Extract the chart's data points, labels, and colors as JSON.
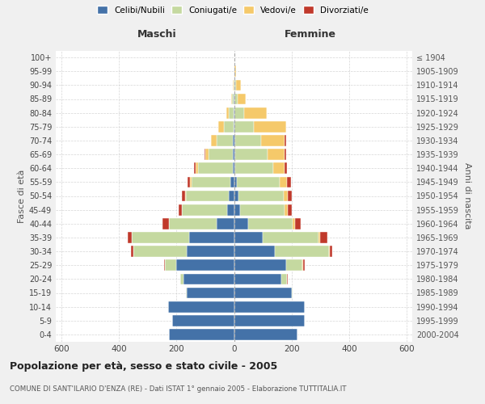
{
  "age_groups": [
    "0-4",
    "5-9",
    "10-14",
    "15-19",
    "20-24",
    "25-29",
    "30-34",
    "35-39",
    "40-44",
    "45-49",
    "50-54",
    "55-59",
    "60-64",
    "65-69",
    "70-74",
    "75-79",
    "80-84",
    "85-89",
    "90-94",
    "95-99",
    "100+"
  ],
  "birth_years": [
    "2000-2004",
    "1995-1999",
    "1990-1994",
    "1985-1989",
    "1980-1984",
    "1975-1979",
    "1970-1974",
    "1965-1969",
    "1960-1964",
    "1955-1959",
    "1950-1954",
    "1945-1949",
    "1940-1944",
    "1935-1939",
    "1930-1934",
    "1925-1929",
    "1920-1924",
    "1915-1919",
    "1910-1914",
    "1905-1909",
    "≤ 1904"
  ],
  "maschi": {
    "celibi": [
      225,
      215,
      230,
      165,
      175,
      200,
      165,
      155,
      60,
      25,
      18,
      12,
      5,
      4,
      3,
      2,
      2,
      1,
      0,
      0,
      0
    ],
    "coniugati": [
      0,
      0,
      0,
      2,
      12,
      40,
      185,
      200,
      165,
      155,
      150,
      135,
      120,
      85,
      58,
      32,
      16,
      5,
      2,
      0,
      0
    ],
    "vedovi": [
      0,
      0,
      0,
      0,
      0,
      0,
      0,
      2,
      2,
      2,
      3,
      5,
      8,
      12,
      18,
      20,
      10,
      3,
      1,
      0,
      0
    ],
    "divorziati": [
      0,
      0,
      0,
      0,
      1,
      2,
      8,
      12,
      22,
      12,
      10,
      10,
      5,
      3,
      2,
      2,
      0,
      0,
      0,
      0,
      0
    ]
  },
  "femmine": {
    "nubili": [
      220,
      245,
      245,
      200,
      165,
      180,
      142,
      100,
      50,
      22,
      15,
      10,
      5,
      5,
      3,
      2,
      2,
      2,
      0,
      0,
      0
    ],
    "coniugate": [
      0,
      0,
      0,
      4,
      20,
      58,
      188,
      195,
      155,
      155,
      158,
      148,
      132,
      112,
      92,
      68,
      32,
      10,
      8,
      2,
      0
    ],
    "vedove": [
      0,
      0,
      0,
      0,
      0,
      2,
      2,
      5,
      8,
      10,
      15,
      25,
      40,
      60,
      82,
      110,
      80,
      30,
      15,
      5,
      0
    ],
    "divorziate": [
      0,
      0,
      0,
      0,
      2,
      5,
      10,
      25,
      20,
      15,
      12,
      15,
      8,
      5,
      3,
      2,
      0,
      0,
      0,
      0,
      0
    ]
  },
  "colors": {
    "celibi": "#4472a8",
    "coniugati": "#c5d9a0",
    "vedovi": "#f5c96a",
    "divorziati": "#c0392b"
  },
  "xlim": 620,
  "title": "Popolazione per età, sesso e stato civile - 2005",
  "subtitle": "COMUNE DI SANT'ILARIO D'ENZA (RE) - Dati ISTAT 1° gennaio 2005 - Elaborazione TUTTITALIA.IT",
  "ylabel_left": "Fasce di età",
  "ylabel_right": "Anni di nascita",
  "bg_color": "#f0f0f0",
  "plot_bg": "#ffffff",
  "grid_color": "#cccccc"
}
